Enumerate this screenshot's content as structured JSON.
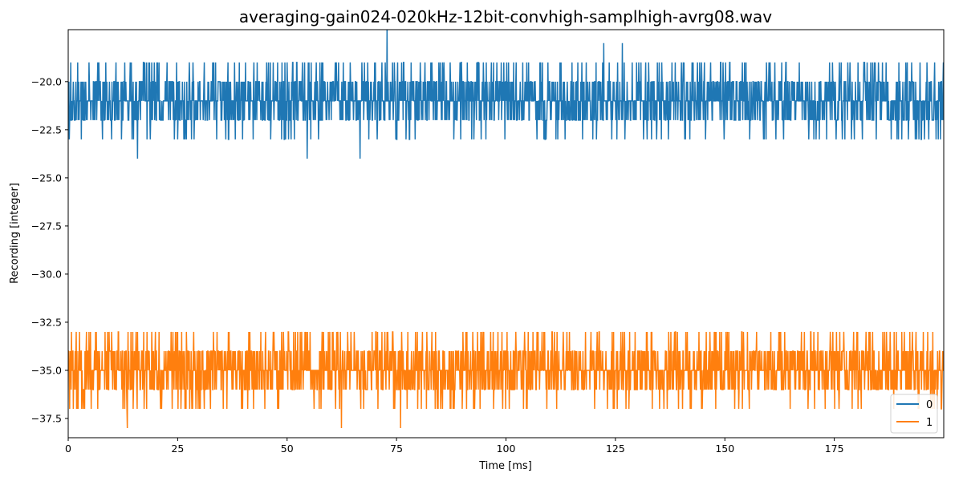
{
  "chart_data": {
    "type": "line",
    "title": "averaging-gain024-020kHz-12bit-convhigh-samplhigh-avrg08.wav",
    "xlabel": "Time [ms]",
    "ylabel": "Recording [integer]",
    "xlim": [
      0,
      200
    ],
    "ylim": [
      -38.5,
      -17.3
    ],
    "xticks": [
      0,
      25,
      50,
      75,
      100,
      125,
      150,
      175
    ],
    "xtick_labels": [
      "0",
      "25",
      "50",
      "75",
      "100",
      "125",
      "150",
      "175"
    ],
    "yticks": [
      -20.0,
      -22.5,
      -25.0,
      -27.5,
      -30.0,
      -32.5,
      -35.0,
      -37.5
    ],
    "ytick_labels": [
      "−20.0",
      "−22.5",
      "−25.0",
      "−27.5",
      "−30.0",
      "−32.5",
      "−35.0",
      "−37.5"
    ],
    "grid": false,
    "legend_position": "lower-right",
    "series": [
      {
        "name": "0",
        "color": "#1f77b4",
        "baseline": -21,
        "values_range": [
          -24,
          -17
        ],
        "spikes": [
          {
            "x": 15.8,
            "y": -24
          },
          {
            "x": 54.6,
            "y": -24
          },
          {
            "x": 66.7,
            "y": -24
          },
          {
            "x": 72.8,
            "y": -17
          },
          {
            "x": 122.3,
            "y": -18
          },
          {
            "x": 126.6,
            "y": -18
          }
        ]
      },
      {
        "name": "1",
        "color": "#ff7f0e",
        "baseline": -35,
        "values_range": [
          -38,
          -33
        ],
        "spikes": [
          {
            "x": 13.5,
            "y": -38
          },
          {
            "x": 62.4,
            "y": -38
          },
          {
            "x": 75.9,
            "y": -38
          }
        ]
      }
    ]
  }
}
